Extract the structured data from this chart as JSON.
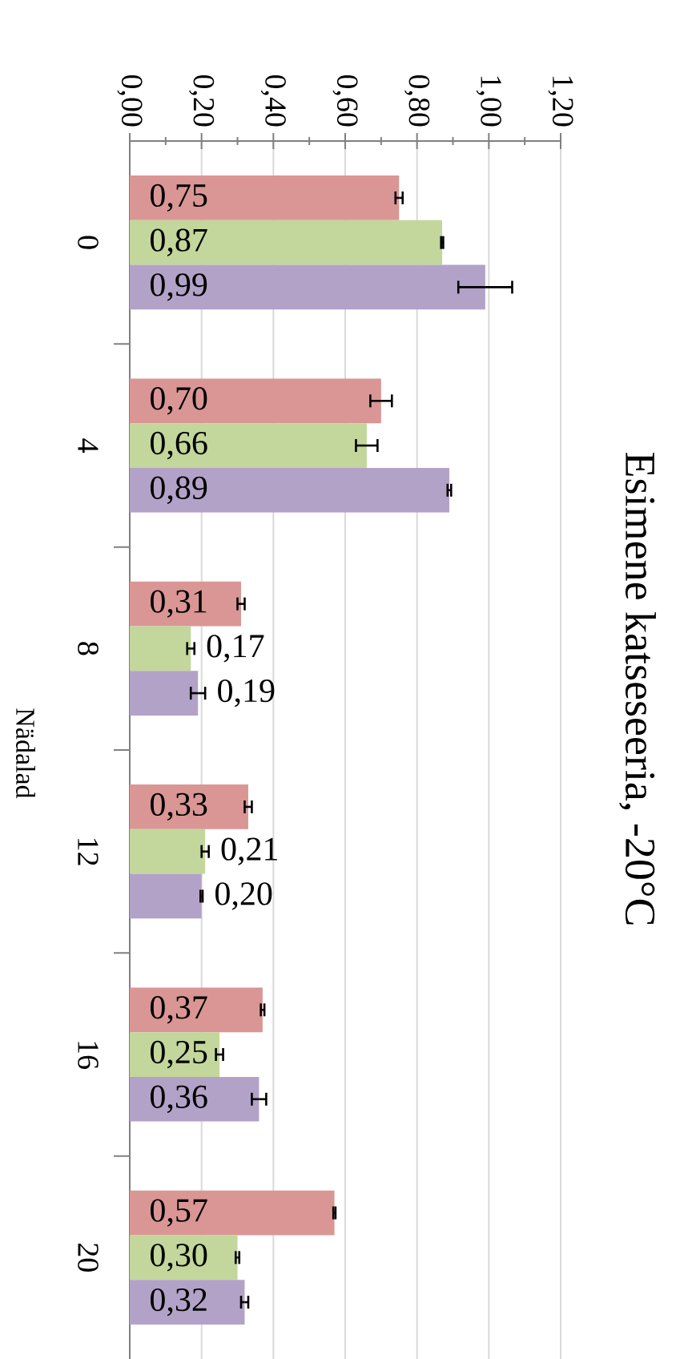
{
  "chart_data": {
    "type": "bar",
    "orientation": "horizontal",
    "title": "Esimene katseseeria, -20°C",
    "ylabel": "Nädalad",
    "categories": [
      "0",
      "4",
      "8",
      "12",
      "16",
      "20"
    ],
    "series": [
      {
        "color": "#d99694",
        "values": [
          0.75,
          0.7,
          0.31,
          0.33,
          0.37,
          0.57
        ],
        "errors": [
          0.01,
          0.03,
          0.01,
          0.01,
          0.005,
          0.003
        ],
        "value_labels": [
          "0,75",
          "0,70",
          "0,31",
          "0,33",
          "0,37",
          "0,57"
        ]
      },
      {
        "color": "#c3d69b",
        "values": [
          0.87,
          0.66,
          0.17,
          0.21,
          0.25,
          0.3
        ],
        "errors": [
          0.003,
          0.03,
          0.01,
          0.01,
          0.01,
          0.005
        ],
        "value_labels": [
          "0,87",
          "0,66",
          "0,17",
          "0,21",
          "0,25",
          "0,30"
        ]
      },
      {
        "color": "#b3a2c7",
        "values": [
          0.99,
          0.89,
          0.19,
          0.2,
          0.36,
          0.32
        ],
        "errors": [
          0.075,
          0.005,
          0.02,
          0.003,
          0.02,
          0.01
        ],
        "value_labels": [
          "0,99",
          "0,89",
          "0,19",
          "0,20",
          "0,36",
          "0,32"
        ]
      }
    ],
    "xlim": [
      0,
      1.2
    ],
    "xticks": [
      {
        "value": 0,
        "label": "0,00"
      },
      {
        "value": 0.2,
        "label": "0,20"
      },
      {
        "value": 0.4,
        "label": "0,40"
      },
      {
        "value": 0.6,
        "label": "0,60"
      },
      {
        "value": 0.8,
        "label": "0,80"
      },
      {
        "value": 1.0,
        "label": "1,00"
      },
      {
        "value": 1.2,
        "label": "1,20"
      }
    ],
    "grid": "x"
  }
}
